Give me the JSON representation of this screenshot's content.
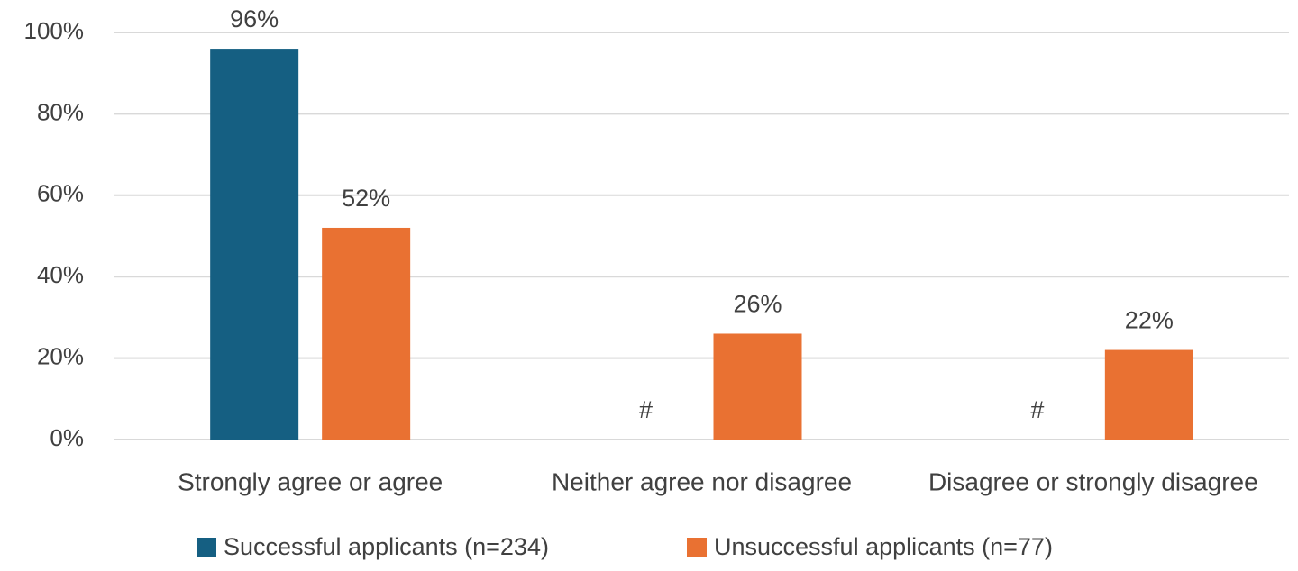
{
  "chart_data": {
    "type": "bar",
    "categories": [
      "Strongly agree or agree",
      "Neither agree nor disagree",
      "Disagree or strongly disagree"
    ],
    "series": [
      {
        "name": "Successful applicants (n=234)",
        "color": "#155f82",
        "values": [
          96,
          null,
          null
        ],
        "value_labels": [
          "96%",
          "#",
          "#"
        ]
      },
      {
        "name": "Unsuccessful applicants (n=77)",
        "color": "#e97132",
        "values": [
          52,
          26,
          22
        ],
        "value_labels": [
          "52%",
          "26%",
          "22%"
        ]
      }
    ],
    "ylim": [
      0,
      100
    ],
    "yticks": [
      {
        "value": 0,
        "label": "0%"
      },
      {
        "value": 20,
        "label": "20%"
      },
      {
        "value": 40,
        "label": "40%"
      },
      {
        "value": 60,
        "label": "60%"
      },
      {
        "value": 80,
        "label": "80%"
      },
      {
        "value": 100,
        "label": "100%"
      }
    ],
    "grid": true,
    "legend": "bottom"
  }
}
